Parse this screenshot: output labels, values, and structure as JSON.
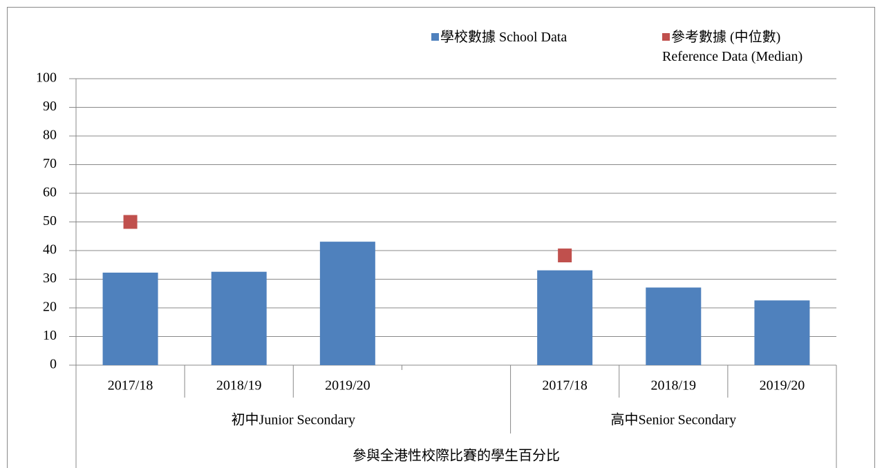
{
  "chart_data": {
    "type": "bar",
    "groups": [
      {
        "label": "初中Junior Secondary",
        "categories": [
          "2017/18",
          "2018/19",
          "2019/20",
          null
        ]
      },
      {
        "label": "高中Senior Secondary",
        "categories": [
          "2017/18",
          "2018/19",
          "2019/20"
        ]
      }
    ],
    "xlabel": "參與全港性校際比賽的學生百分比",
    "series": [
      {
        "name": "學校數據 School Data",
        "type": "bar",
        "color": "#4f81bd",
        "values": [
          32.3,
          32.6,
          43.1,
          null,
          33.1,
          27.1,
          22.6
        ]
      },
      {
        "name": "參考數據 (中位數) Reference Data (Median)",
        "type": "marker",
        "color": "#c0504d",
        "values": [
          50,
          null,
          null,
          null,
          38.3,
          null,
          null
        ]
      }
    ],
    "ylim": [
      0,
      100
    ],
    "yticks": [
      0,
      10,
      20,
      30,
      40,
      50,
      60,
      70,
      80,
      90,
      100
    ],
    "grid": true,
    "legend": "top-right"
  }
}
